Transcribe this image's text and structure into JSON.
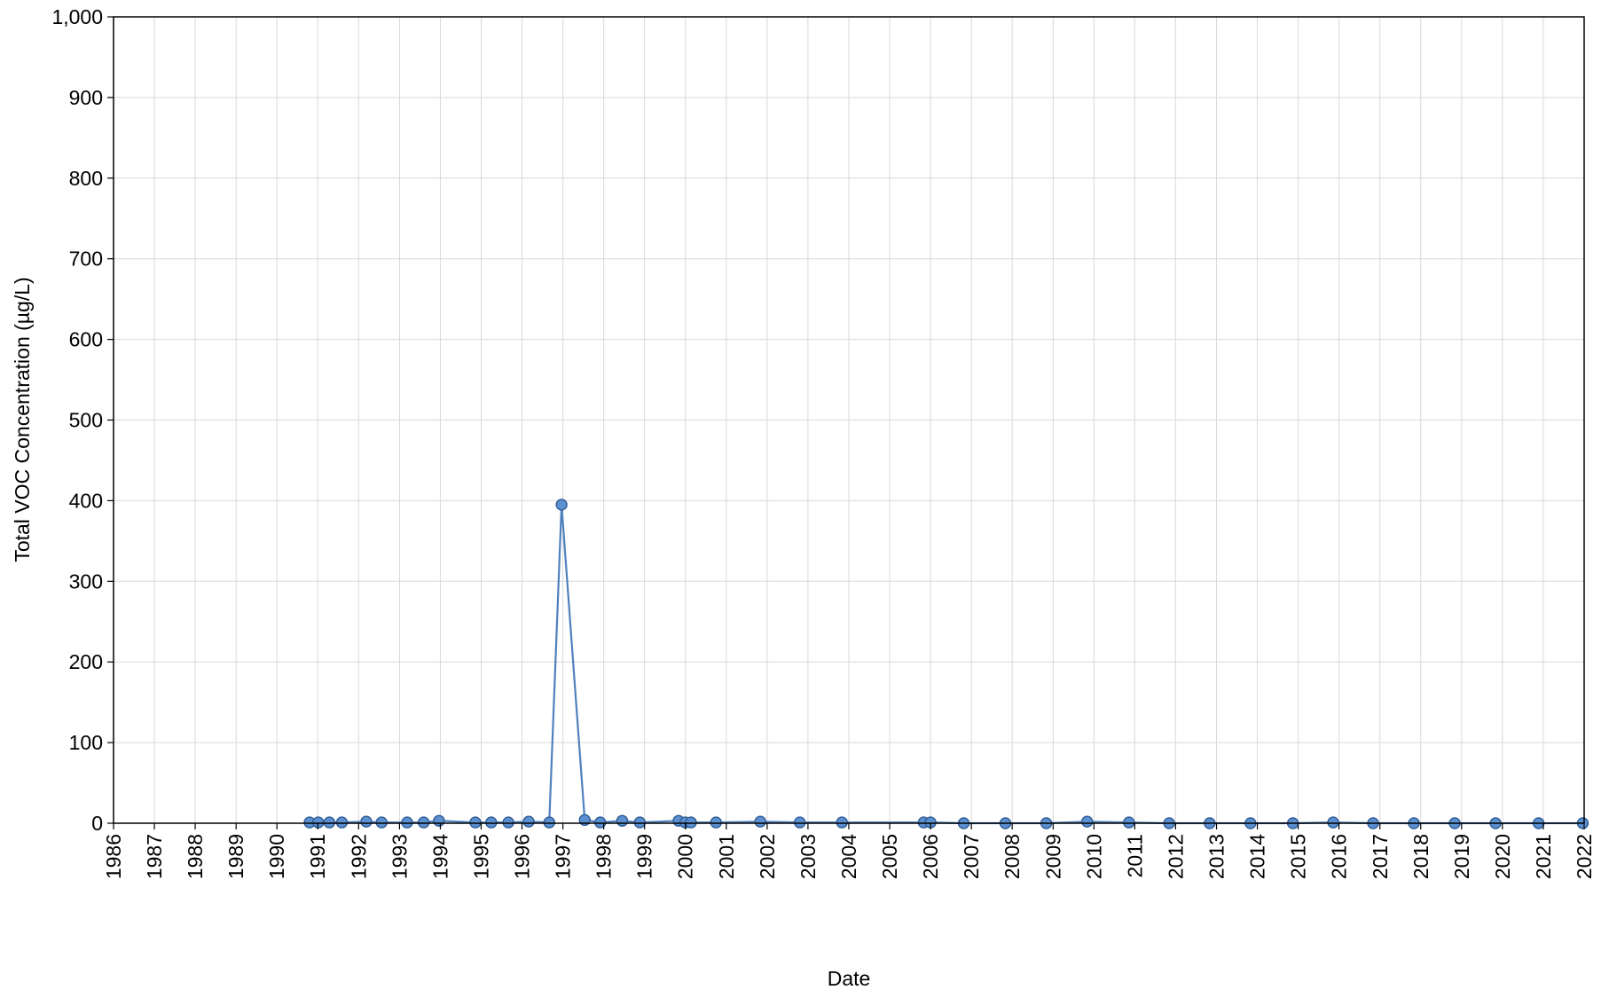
{
  "chart_data": {
    "type": "line",
    "xlabel": "Date",
    "ylabel": "Total VOC Concentration (µg/L)",
    "ylim": [
      0,
      1000
    ],
    "yticks": [
      "0",
      "100",
      "200",
      "300",
      "400",
      "500",
      "600",
      "700",
      "800",
      "900",
      "1,000"
    ],
    "xlim": [
      "1986-01-01",
      "2022-01-01"
    ],
    "xticks": [
      "1986",
      "1987",
      "1988",
      "1989",
      "1990",
      "1991",
      "1992",
      "1993",
      "1994",
      "1995",
      "1996",
      "1997",
      "1998",
      "1999",
      "2000",
      "2001",
      "2002",
      "2003",
      "2004",
      "2005",
      "2006",
      "2007",
      "2008",
      "2009",
      "2010",
      "2011",
      "2012",
      "2013",
      "2014",
      "2015",
      "2016",
      "2017",
      "2018",
      "2019",
      "2020",
      "2021",
      "2022"
    ],
    "grid": true,
    "legend": "none",
    "series_color": "#4f81bd",
    "series": [
      {
        "x": [
          "1990-10-20",
          "1991-01-05",
          "1991-04-15",
          "1991-08-05",
          "1992-03-10",
          "1992-07-25",
          "1993-03-10",
          "1993-08-05",
          "1993-12-20",
          "1994-11-10",
          "1995-04-01",
          "1995-09-01",
          "1996-03-01",
          "1996-09-01",
          "1996-12-20",
          "1997-07-15",
          "1997-12-01",
          "1998-06-15",
          "1998-11-20",
          "1999-11-01",
          "2000-01-01",
          "2000-02-20",
          "2000-10-01",
          "2001-11-01",
          "2002-10-20",
          "2003-11-01",
          "2005-11-01",
          "2006-01-01",
          "2006-10-25",
          "2007-11-01",
          "2008-11-01",
          "2009-11-01",
          "2010-11-10",
          "2011-11-05",
          "2012-11-01",
          "2013-11-01",
          "2014-11-15",
          "2015-11-10",
          "2016-11-01",
          "2017-11-01",
          "2018-11-01",
          "2019-11-01",
          "2020-11-20",
          "2021-12-20"
        ],
        "values": [
          1,
          1,
          1,
          1,
          2,
          1,
          1,
          1,
          3,
          1,
          1,
          1,
          2,
          1,
          395,
          4,
          1,
          3,
          1,
          3,
          1,
          1,
          1,
          2,
          1,
          1,
          1,
          1,
          0,
          0,
          0,
          2,
          1,
          0,
          0,
          0,
          0,
          1,
          0,
          0,
          0,
          0,
          0,
          0
        ]
      }
    ]
  }
}
